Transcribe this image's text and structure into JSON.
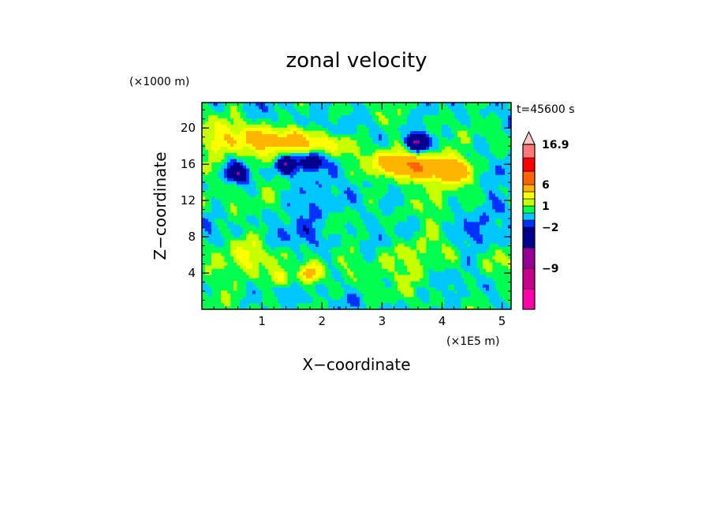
{
  "chart_data": {
    "type": "heatmap",
    "title": "zonal velocity",
    "xlabel": "X−coordinate",
    "ylabel": "Z−coordinate",
    "x_unit": "(×1E5 m)",
    "y_unit": "(×1000 m)",
    "time_label": "t=45600 s",
    "xlim": [
      0,
      5.15
    ],
    "ylim": [
      0,
      22.8
    ],
    "x_ticks": [
      {
        "value": 1,
        "label": "1"
      },
      {
        "value": 2,
        "label": "2"
      },
      {
        "value": 3,
        "label": "3"
      },
      {
        "value": 4,
        "label": "4"
      },
      {
        "value": 5,
        "label": "5"
      }
    ],
    "y_ticks": [
      {
        "value": 4,
        "label": "4"
      },
      {
        "value": 8,
        "label": "8"
      },
      {
        "value": 12,
        "label": "12"
      },
      {
        "value": 16,
        "label": "16"
      },
      {
        "value": 20,
        "label": "20"
      }
    ],
    "colorbar": {
      "levels": [
        -16.9,
        -13,
        -9,
        -6,
        -2,
        -1,
        0,
        1,
        2,
        3,
        6,
        9,
        13,
        16.9
      ],
      "colors": [
        "#ff00aa",
        "#c8008c",
        "#960096",
        "#00008c",
        "#0032ff",
        "#00c8ff",
        "#00ff50",
        "#c8ff00",
        "#ffff00",
        "#ffb400",
        "#ff6400",
        "#ff0000",
        "#ff7878",
        "#ffc8c8"
      ],
      "labels": [
        {
          "level": 16.9,
          "text": "16.9"
        },
        {
          "level": 6,
          "text": "6"
        },
        {
          "level": 1,
          "text": "1"
        },
        {
          "level": -2,
          "text": "−2"
        },
        {
          "level": -9,
          "text": "−9"
        }
      ],
      "overflow_arrow": "top"
    },
    "field_features": [
      {
        "kind": "jet",
        "sign": "positive",
        "x_range": [
          0,
          1.3
        ],
        "z_range": [
          16,
          21
        ],
        "peak": 3
      },
      {
        "kind": "jet",
        "sign": "positive",
        "x_range": [
          1.0,
          2.5
        ],
        "z_range": [
          17,
          20
        ],
        "peak": 3
      },
      {
        "kind": "jet",
        "sign": "positive",
        "x_range": [
          2.9,
          4.5
        ],
        "z_range": [
          14,
          17.5
        ],
        "peak": 6
      },
      {
        "kind": "core",
        "sign": "negative",
        "x": 3.6,
        "z": 18.5,
        "peak": -6
      },
      {
        "kind": "core",
        "sign": "negative",
        "x": 0.6,
        "z": 15.0,
        "peak": -6
      },
      {
        "kind": "core",
        "sign": "negative",
        "x": 1.85,
        "z": 16.3,
        "peak": -6
      },
      {
        "kind": "core",
        "sign": "negative",
        "x": 1.4,
        "z": 16.0,
        "peak": -6
      },
      {
        "kind": "core",
        "sign": "positive",
        "x": 1.3,
        "z": 3.5,
        "peak": 3
      },
      {
        "kind": "core",
        "sign": "positive",
        "x": 1.8,
        "z": 4.0,
        "peak": 3
      }
    ]
  }
}
